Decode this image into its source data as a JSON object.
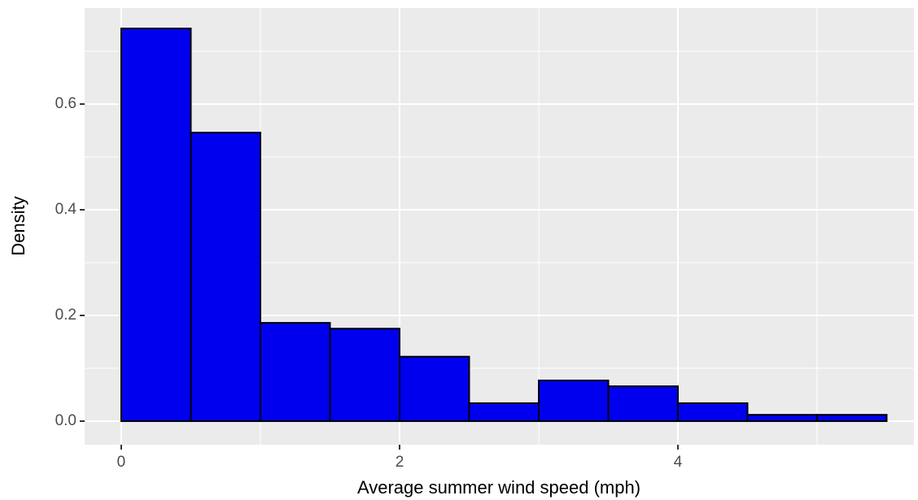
{
  "chart_data": {
    "type": "histogram",
    "x_label": "Average summer wind speed (mph)",
    "y_label": "Density",
    "bins": [
      0,
      0.5,
      1,
      1.5,
      2,
      2.5,
      3,
      3.5,
      4,
      4.5,
      5,
      5.5
    ],
    "values": [
      0.743,
      0.546,
      0.186,
      0.175,
      0.122,
      0.034,
      0.077,
      0.066,
      0.034,
      0.012,
      0.012
    ],
    "color": "#0000ee",
    "edge_color": "#000000",
    "xlim": [
      -0.263,
      5.696
    ],
    "ylim": [
      -0.0446,
      0.7815
    ],
    "xticks": [
      0,
      2,
      4
    ],
    "yticks": [
      {
        "value": 0,
        "label": "0.0"
      },
      0.2,
      0.4,
      0.6
    ],
    "minor_xticks": [
      1,
      3,
      5
    ],
    "minor_yticks": [
      0.1,
      0.3,
      0.5,
      0.7
    ],
    "grid": true
  }
}
